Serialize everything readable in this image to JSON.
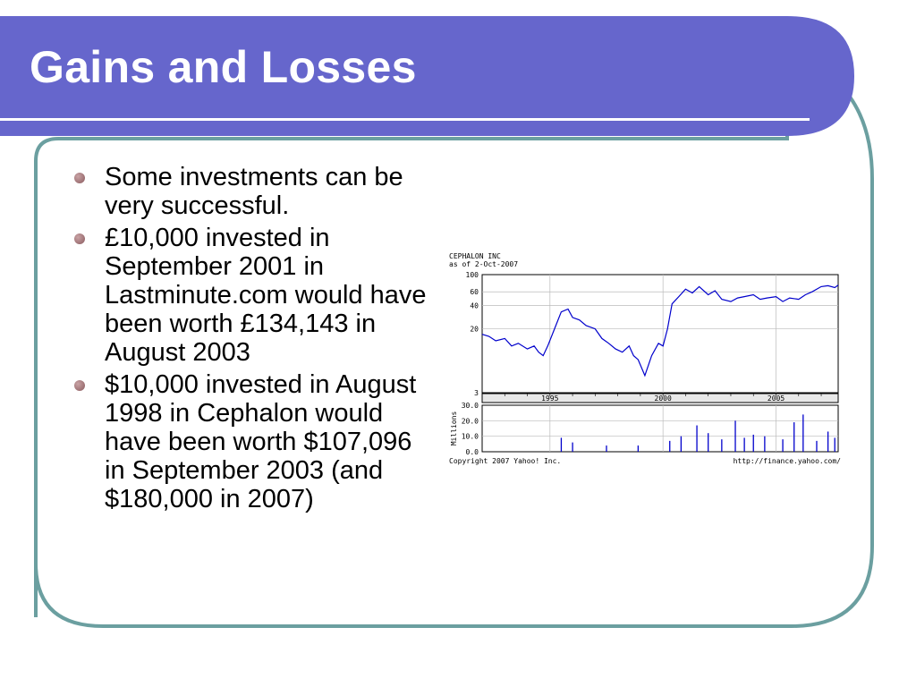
{
  "slide": {
    "title": "Gains and Losses",
    "colors": {
      "title_bar": "#6666CC",
      "frame": "#6B9FA0",
      "bullet": "#9A6A6E",
      "chart_line": "#0000CC"
    },
    "bullets": [
      "Some investments can be very successful.",
      "£10,000 invested in September 2001 in Lastminute.com would have been worth £134,143 in August 2003",
      "$10,000 invested in August 1998 in Cephalon would have been worth $107,096 in September 2003 (and $180,000 in 2007)"
    ]
  },
  "chart_data": {
    "type": "line",
    "title": "CEPHALON INC",
    "subtitle": "as of 2-Oct-2007",
    "price_panel": {
      "y_scale": "log",
      "yticks": [
        "100",
        "60",
        "40",
        "20",
        "3"
      ],
      "ylim": [
        3,
        100
      ],
      "xticks": [
        "1995",
        "2000",
        "2005"
      ],
      "xlim": [
        1992.0,
        2007.75
      ],
      "series": [
        {
          "x": [
            1992.0,
            1992.3,
            1992.6,
            1993.0,
            1993.3,
            1993.6,
            1994.0,
            1994.3,
            1994.5,
            1994.7,
            1994.9,
            1995.2,
            1995.5,
            1995.8,
            1996.0,
            1996.3,
            1996.6,
            1997.0,
            1997.3,
            1997.6,
            1997.9,
            1998.2,
            1998.5,
            1998.7,
            1998.9,
            1999.2,
            1999.5,
            1999.8,
            2000.0,
            2000.2,
            2000.4,
            2000.7,
            2001.0,
            2001.3,
            2001.6,
            2002.0,
            2002.3,
            2002.6,
            2003.0,
            2003.3,
            2003.6,
            2004.0,
            2004.3,
            2004.6,
            2005.0,
            2005.3,
            2005.6,
            2006.0,
            2006.3,
            2006.6,
            2007.0,
            2007.3,
            2007.6,
            2007.75
          ],
          "y": [
            17,
            16,
            14,
            15,
            12,
            13,
            11,
            12,
            10,
            9,
            12,
            20,
            33,
            36,
            28,
            26,
            22,
            20,
            15,
            13,
            11,
            10,
            12,
            9,
            8,
            5,
            9,
            13,
            12,
            20,
            42,
            52,
            65,
            58,
            70,
            55,
            62,
            48,
            45,
            50,
            52,
            55,
            48,
            50,
            52,
            45,
            50,
            48,
            55,
            60,
            70,
            72,
            68,
            73
          ]
        }
      ]
    },
    "volume_panel": {
      "ylabel": "Millions",
      "yticks": [
        "30.0",
        "20.0",
        "10.0",
        "0.0"
      ],
      "ylim": [
        0,
        30
      ],
      "series": [
        {
          "x": [
            1995.5,
            1996.0,
            1997.5,
            1998.9,
            2000.3,
            2000.8,
            2001.5,
            2002.0,
            2002.6,
            2003.2,
            2003.6,
            2004.0,
            2004.5,
            2005.3,
            2005.8,
            2006.2,
            2006.8,
            2007.3,
            2007.6
          ],
          "y": [
            9,
            6,
            4,
            4,
            7,
            10,
            17,
            12,
            8,
            20,
            9,
            11,
            10,
            8,
            19,
            24,
            7,
            13,
            9
          ]
        }
      ]
    },
    "footer_left": "Copyright 2007 Yahoo! Inc.",
    "footer_right": "http://finance.yahoo.com/"
  }
}
